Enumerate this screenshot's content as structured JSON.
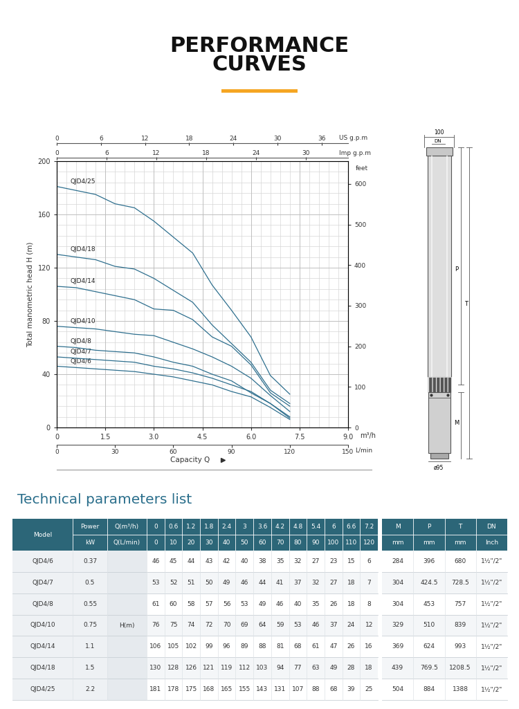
{
  "header": {
    "title": "PERFORMANCE CURVES"
  },
  "chart_data": {
    "type": "line",
    "ylabel": "Total manometric head H (m)",
    "xlabel": "Capacity Q",
    "x_unit": "m³/h",
    "x": [
      0,
      0.6,
      1.2,
      1.8,
      2.4,
      3,
      3.6,
      4.2,
      4.8,
      5.4,
      6,
      6.6,
      7.2
    ],
    "series": [
      {
        "name": "QJD4/6",
        "color": "#2e6f8e",
        "values": [
          46,
          45,
          44,
          43,
          42,
          40,
          38,
          35,
          32,
          27,
          23,
          15,
          6
        ]
      },
      {
        "name": "QJD4/7",
        "color": "#2e6f8e",
        "values": [
          53,
          52,
          51,
          50,
          49,
          46,
          44,
          41,
          37,
          32,
          27,
          18,
          7
        ]
      },
      {
        "name": "QJD4/8",
        "color": "#2e6f8e",
        "values": [
          61,
          60,
          58,
          57,
          56,
          53,
          49,
          46,
          40,
          35,
          26,
          18,
          8
        ]
      },
      {
        "name": "QJD4/10",
        "color": "#2e6f8e",
        "values": [
          76,
          75,
          74,
          72,
          70,
          69,
          64,
          59,
          53,
          46,
          37,
          24,
          12
        ]
      },
      {
        "name": "QJD4/14",
        "color": "#2e6f8e",
        "values": [
          106,
          105,
          102,
          99,
          96,
          89,
          88,
          81,
          68,
          61,
          47,
          26,
          16
        ]
      },
      {
        "name": "QJD4/18",
        "color": "#2e6f8e",
        "values": [
          130,
          128,
          126,
          121,
          119,
          112,
          103,
          94,
          77,
          63,
          49,
          28,
          18
        ]
      },
      {
        "name": "QJD4/25",
        "color": "#2e6f8e",
        "values": [
          181,
          178,
          175,
          168,
          165,
          155,
          143,
          131,
          107,
          88,
          68,
          39,
          25
        ]
      }
    ],
    "xlim": [
      0,
      9
    ],
    "xticks": [
      0,
      1.5,
      3.0,
      4.5,
      6.0,
      7.5,
      9.0
    ],
    "ylim": [
      0,
      200
    ],
    "yticks": [
      0,
      40,
      80,
      120,
      160,
      200
    ],
    "grid": true,
    "us_gpm_axis": {
      "label": "US g.p.m",
      "lim": [
        0,
        39.6
      ],
      "ticks": [
        0,
        6,
        12,
        18,
        24,
        30,
        36
      ]
    },
    "imp_gpm_axis": {
      "label": "Imp g.p.m",
      "lim": [
        0,
        35.1
      ],
      "ticks": [
        0,
        6,
        12,
        18,
        24,
        30
      ]
    },
    "lpm_axis": {
      "label": "L/min",
      "lim": [
        0,
        150
      ],
      "ticks": [
        0,
        30,
        60,
        90,
        120,
        150
      ]
    },
    "feet_axis": {
      "label": "feet",
      "lim": [
        0,
        656.2
      ],
      "ticks": [
        0,
        100,
        200,
        300,
        400,
        500,
        600
      ]
    }
  },
  "dimension_drawing": {
    "labels": {
      "top_width": "100",
      "outlet": "DN",
      "pump_length": "P",
      "total_length": "T",
      "motor_length": "M",
      "diameter": "ø95"
    }
  },
  "table": {
    "title": "Technical parameters list",
    "model_header": "Model",
    "power_header": [
      "Power",
      "kW"
    ],
    "q_header": [
      "Q(m³/h)",
      "Q(L/min)"
    ],
    "q_m3h": [
      0,
      0.6,
      1.2,
      1.8,
      2.4,
      3,
      3.6,
      4.2,
      4.8,
      5.4,
      6,
      6.6,
      7.2
    ],
    "q_lmin": [
      0,
      10,
      20,
      30,
      40,
      50,
      60,
      70,
      80,
      90,
      100,
      110,
      120
    ],
    "dim_headers": [
      [
        "M",
        "mm"
      ],
      [
        "P",
        "mm"
      ],
      [
        "T",
        "mm"
      ],
      [
        "DN",
        "Inch"
      ]
    ],
    "h_label": "H(m)",
    "rows": [
      {
        "model": "QJD4/6",
        "power": 0.37,
        "H": [
          46,
          45,
          44,
          43,
          42,
          40,
          38,
          35,
          32,
          27,
          23,
          15,
          6
        ],
        "dims": [
          284,
          396,
          680,
          "1½\"/2\""
        ]
      },
      {
        "model": "QJD4/7",
        "power": 0.5,
        "H": [
          53,
          52,
          51,
          50,
          49,
          46,
          44,
          41,
          37,
          32,
          27,
          18,
          7
        ],
        "dims": [
          304,
          424.5,
          728.5,
          "1½\"/2\""
        ]
      },
      {
        "model": "QJD4/8",
        "power": 0.55,
        "H": [
          61,
          60,
          58,
          57,
          56,
          53,
          49,
          46,
          40,
          35,
          26,
          18,
          8
        ],
        "dims": [
          304,
          453,
          757,
          "1½\"/2\""
        ]
      },
      {
        "model": "QJD4/10",
        "power": 0.75,
        "H": [
          76,
          75,
          74,
          72,
          70,
          69,
          64,
          59,
          53,
          46,
          37,
          24,
          12
        ],
        "dims": [
          329,
          510,
          839,
          "1½\"/2\""
        ]
      },
      {
        "model": "QJD4/14",
        "power": 1.1,
        "H": [
          106,
          105,
          102,
          99,
          96,
          89,
          88,
          81,
          68,
          61,
          47,
          26,
          16
        ],
        "dims": [
          369,
          624,
          993,
          "1½\"/2\""
        ]
      },
      {
        "model": "QJD4/18",
        "power": 1.5,
        "H": [
          130,
          128,
          126,
          121,
          119,
          112,
          103,
          94,
          77,
          63,
          49,
          28,
          18
        ],
        "dims": [
          439,
          769.5,
          1208.5,
          "1½\"/2\""
        ]
      },
      {
        "model": "QJD4/25",
        "power": 2.2,
        "H": [
          181,
          178,
          175,
          168,
          165,
          155,
          143,
          131,
          107,
          88,
          68,
          39,
          25
        ],
        "dims": [
          504,
          884,
          1388,
          "1½\"/2\""
        ]
      }
    ]
  }
}
